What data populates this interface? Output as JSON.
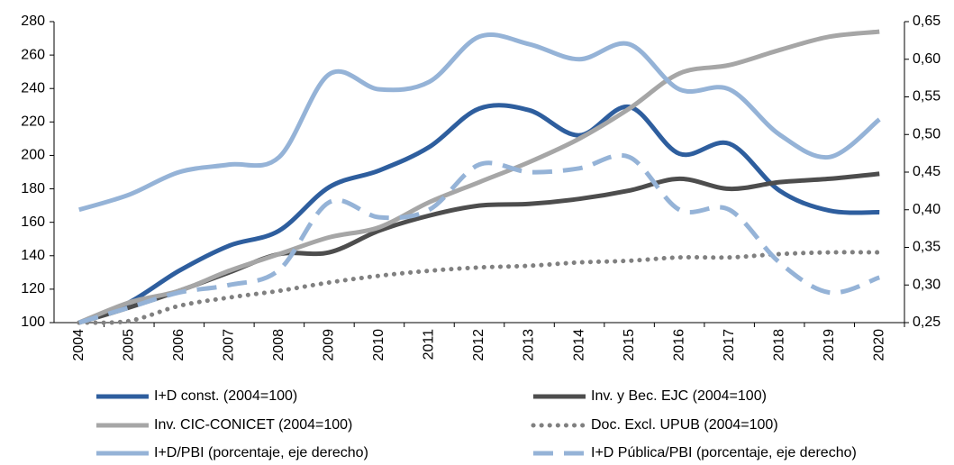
{
  "chart_data": {
    "type": "line",
    "categories": [
      "2004",
      "2005",
      "2006",
      "2007",
      "2008",
      "2009",
      "2010",
      "2011",
      "2012",
      "2013",
      "2014",
      "2015",
      "2016",
      "2017",
      "2018",
      "2019",
      "2020"
    ],
    "ylim": [
      100,
      280
    ],
    "yticks": [
      100,
      120,
      140,
      160,
      180,
      200,
      220,
      240,
      260,
      280
    ],
    "y2lim": [
      0.25,
      0.65
    ],
    "y2ticks": [
      {
        "value": 0.25,
        "label": "0,25"
      },
      {
        "value": 0.3,
        "label": "0,30"
      },
      {
        "value": 0.35,
        "label": "0,35"
      },
      {
        "value": 0.4,
        "label": "0,40"
      },
      {
        "value": 0.45,
        "label": "0,45"
      },
      {
        "value": 0.5,
        "label": "0,50"
      },
      {
        "value": 0.55,
        "label": "0,55"
      },
      {
        "value": 0.6,
        "label": "0,60"
      },
      {
        "value": 0.65,
        "label": "0,65"
      }
    ],
    "legend": "bottom",
    "series": [
      {
        "name": "I+D const. (2004=100)",
        "color": "#2e5e9e",
        "style": "solid",
        "values": [
          100,
          112,
          131,
          146,
          155,
          181,
          191,
          205,
          228,
          227,
          212,
          229,
          201,
          207,
          179,
          167,
          166
        ]
      },
      {
        "name": "Inv. y Bec. EJC (2004=100)",
        "color": "#4d4d4d",
        "style": "solid",
        "values": [
          100,
          109,
          119,
          130,
          141,
          142,
          155,
          164,
          170,
          171,
          174,
          179,
          186,
          180,
          184,
          186,
          189
        ]
      },
      {
        "name": "Inv. CIC-CONICET (2004=100)",
        "color": "#a6a6a6",
        "style": "solid",
        "values": [
          100,
          112,
          119,
          131,
          141,
          151,
          157,
          172,
          184,
          196,
          210,
          228,
          249,
          254,
          263,
          271,
          274
        ]
      },
      {
        "name": "Doc. Excl. UPUB (2004=100)",
        "color": "#808080",
        "style": "dotted",
        "values": [
          100,
          101,
          110,
          115,
          119,
          124,
          128,
          131,
          133,
          134,
          136,
          137,
          139,
          139,
          141,
          142,
          142
        ]
      },
      {
        "name": "I+D/PBI (porcentaje, eje derecho)",
        "color": "#95b3d7",
        "style": "solid",
        "axis": "y2",
        "values": [
          0.4,
          0.42,
          0.45,
          0.46,
          0.47,
          0.58,
          0.56,
          0.57,
          0.63,
          0.62,
          0.6,
          0.62,
          0.56,
          0.56,
          0.5,
          0.47,
          0.52
        ]
      },
      {
        "name": "I+D Pública/PBI (porcentaje, eje derecho)",
        "color": "#95b3d7",
        "style": "dashed",
        "axis": "y2",
        "values": [
          0.25,
          0.27,
          0.29,
          0.3,
          0.32,
          0.41,
          0.39,
          0.4,
          0.46,
          0.45,
          0.455,
          0.47,
          0.4,
          0.4,
          0.33,
          0.29,
          0.31
        ]
      }
    ]
  }
}
